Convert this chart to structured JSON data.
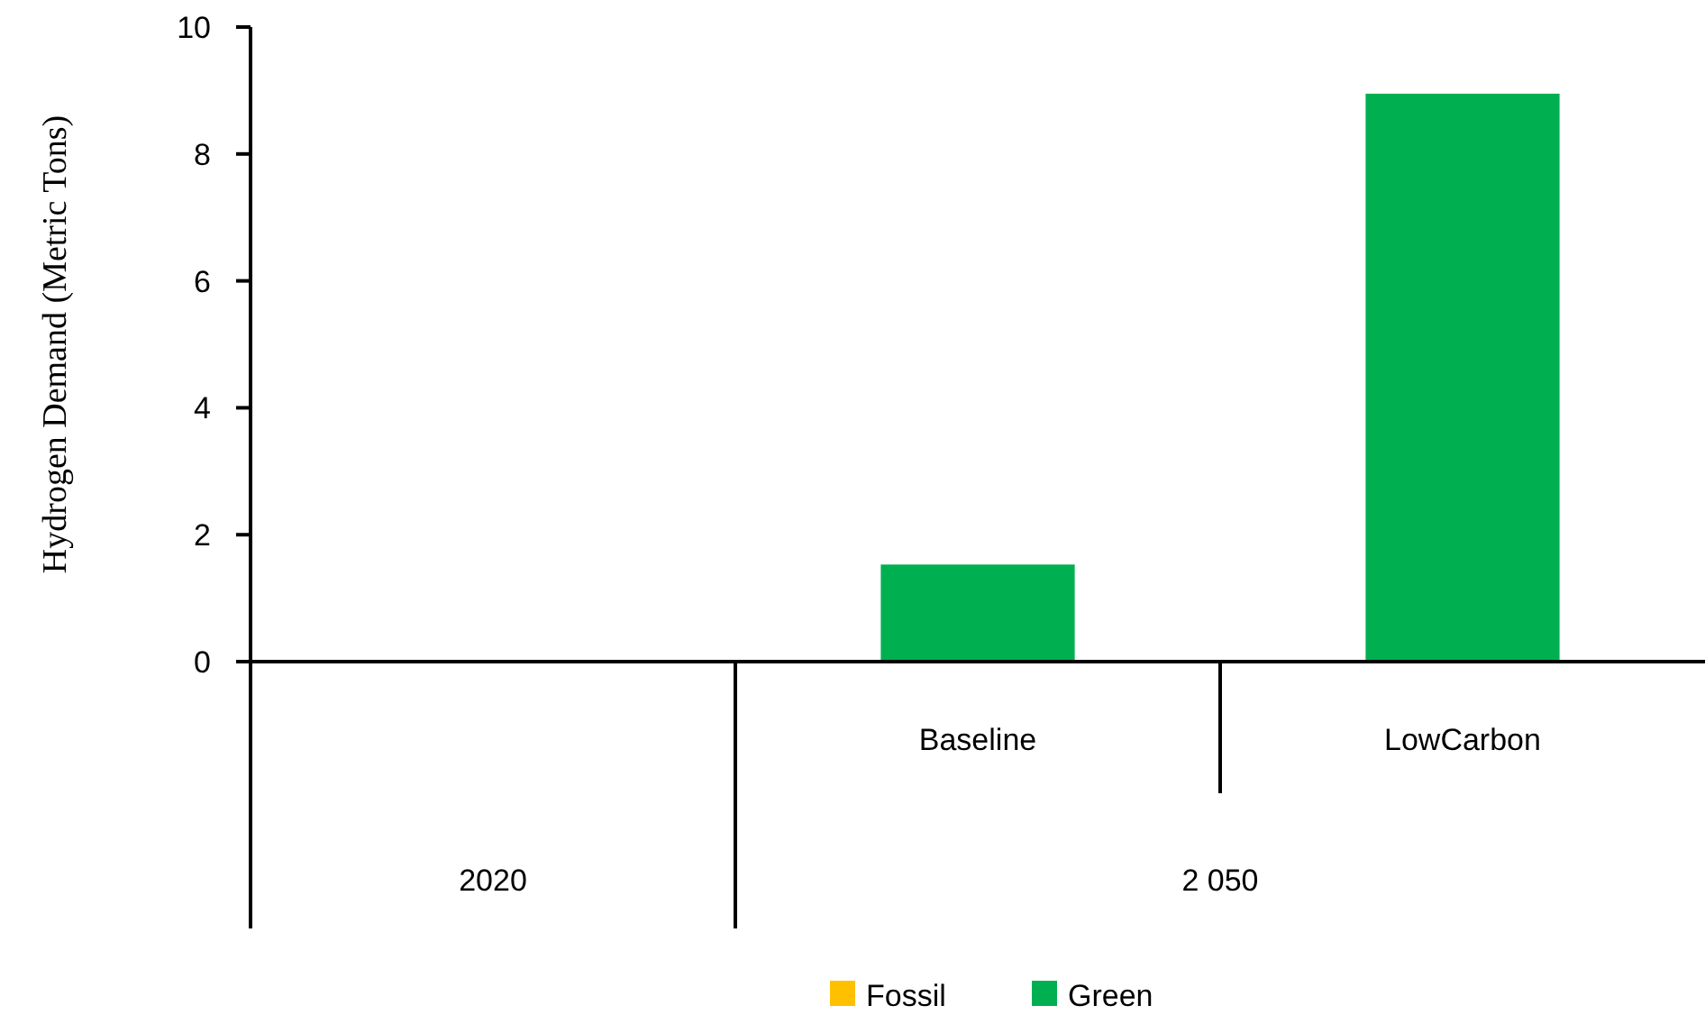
{
  "chart_data": {
    "type": "bar",
    "ylabel": "Hydrogen Demand (Metric Tons)",
    "categories": [
      null,
      "Baseline",
      "LowCarbon"
    ],
    "annotations": [
      "2020",
      "2 050"
    ],
    "stacked": true,
    "series": [
      {
        "name": "Fossil",
        "color": "#ffc000",
        "values": [
          0,
          0,
          0
        ]
      },
      {
        "name": "Green",
        "color": "#00b050",
        "values": [
          0,
          1.53,
          8.95
        ]
      }
    ],
    "ylim": [
      0,
      10
    ],
    "yticks": [
      0,
      2,
      4,
      6,
      8,
      10
    ],
    "grid": false,
    "legend": "bottom"
  }
}
